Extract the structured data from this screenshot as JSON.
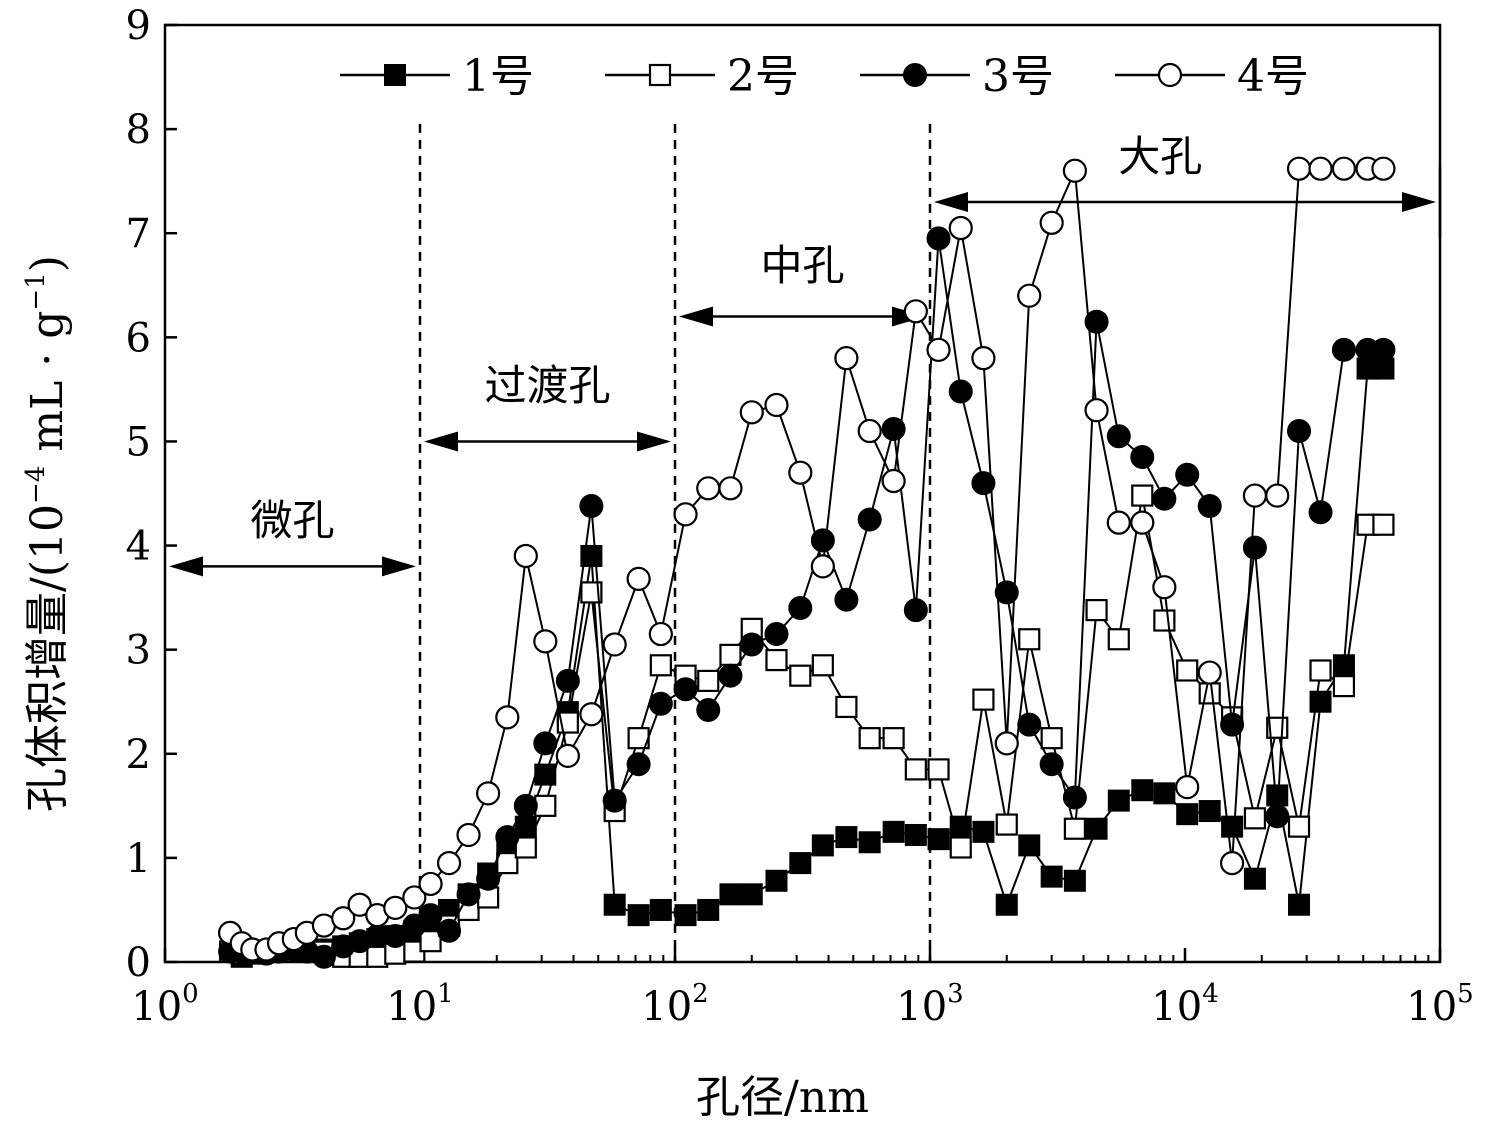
{
  "chart_data": {
    "type": "line",
    "title": "",
    "xlabel": "孔径/nm",
    "ylabel": "孔体积增量/(10⁻⁴ mL · g⁻¹)",
    "ylabel_parts": {
      "prefix": "孔体积增量/(10",
      "exp1": "−4",
      "mid": " mL · g",
      "exp2": "−1",
      "suffix": ")"
    },
    "x_scale": "log",
    "xlim": [
      1,
      100000
    ],
    "ylim": [
      0,
      9
    ],
    "x_ticks": [
      {
        "value": 1,
        "base": "10",
        "exp": "0"
      },
      {
        "value": 10,
        "base": "10",
        "exp": "1"
      },
      {
        "value": 100,
        "base": "10",
        "exp": "2"
      },
      {
        "value": 1000,
        "base": "10",
        "exp": "3"
      },
      {
        "value": 10000,
        "base": "10",
        "exp": "4"
      },
      {
        "value": 100000,
        "base": "10",
        "exp": "5"
      }
    ],
    "y_ticks": [
      "0",
      "1",
      "2",
      "3",
      "4",
      "5",
      "6",
      "7",
      "8",
      "9"
    ],
    "grid": false,
    "legend_position": "top",
    "boundaries": [
      10,
      100,
      1000
    ],
    "regions": [
      {
        "label": "微孔",
        "from": 1,
        "to": 10,
        "arrow_y": 3.8,
        "label_y": 4.1
      },
      {
        "label": "过渡孔",
        "from": 10,
        "to": 100,
        "arrow_y": 5.0,
        "label_y": 5.4
      },
      {
        "label": "中孔",
        "from": 100,
        "to": 1000,
        "arrow_y": 6.2,
        "label_y": 6.55
      },
      {
        "label": "大孔",
        "from": 1000,
        "to": 100000,
        "arrow_y": 7.3,
        "label_y": 7.6
      }
    ],
    "series": [
      {
        "name": "1号",
        "marker": "square-filled",
        "x": [
          1.8,
          2.0,
          2.2,
          2.5,
          2.8,
          3.2,
          3.6,
          4.2,
          5.0,
          5.8,
          6.8,
          8.0,
          9.5,
          11,
          13,
          15.5,
          18.5,
          22,
          26,
          31,
          38,
          47,
          58,
          72,
          88,
          110,
          135,
          165,
          200,
          250,
          310,
          380,
          470,
          580,
          720,
          880,
          1080,
          1320,
          1620,
          2000,
          2450,
          3000,
          3700,
          4500,
          5500,
          6800,
          8300,
          10200,
          12500,
          15300,
          18800,
          23000,
          28000,
          34000,
          42000,
          52000,
          60000
        ],
        "y": [
          0.1,
          0.05,
          0.08,
          0.1,
          0.12,
          0.15,
          0.1,
          0.12,
          0.15,
          0.18,
          0.22,
          0.25,
          0.3,
          0.4,
          0.5,
          0.65,
          0.85,
          1.1,
          1.3,
          1.8,
          2.4,
          3.9,
          0.55,
          0.45,
          0.5,
          0.45,
          0.5,
          0.65,
          0.65,
          0.78,
          0.95,
          1.12,
          1.2,
          1.15,
          1.25,
          1.22,
          1.18,
          1.3,
          1.25,
          0.55,
          1.12,
          0.82,
          0.78,
          1.28,
          1.55,
          1.65,
          1.62,
          1.42,
          1.45,
          1.3,
          0.8,
          1.6,
          0.55,
          2.5,
          2.85,
          5.7,
          5.7
        ]
      },
      {
        "name": "2号",
        "marker": "square-open",
        "x": [
          1.8,
          2.0,
          2.2,
          2.5,
          2.8,
          3.2,
          3.6,
          4.2,
          5.0,
          5.8,
          6.8,
          8.0,
          9.5,
          11,
          13,
          15.5,
          18.5,
          22,
          26,
          31,
          38,
          47,
          58,
          72,
          88,
          110,
          135,
          165,
          200,
          250,
          310,
          380,
          470,
          580,
          720,
          880,
          1080,
          1320,
          1620,
          2000,
          2450,
          3000,
          3700,
          4500,
          5500,
          6800,
          8300,
          10200,
          12500,
          15300,
          18800,
          23000,
          28000,
          34000,
          42000,
          52000,
          60000
        ],
        "y": [
          0.1,
          0.08,
          0.1,
          0.1,
          0.12,
          0.12,
          0.1,
          0.1,
          0.05,
          0.05,
          0.05,
          0.08,
          0.1,
          0.2,
          0.35,
          0.5,
          0.62,
          0.95,
          1.1,
          1.5,
          2.3,
          3.55,
          1.45,
          2.15,
          2.85,
          2.75,
          2.7,
          2.95,
          3.2,
          2.9,
          2.75,
          2.85,
          2.45,
          2.15,
          2.15,
          1.85,
          1.85,
          1.1,
          2.52,
          1.32,
          3.1,
          2.15,
          1.28,
          3.38,
          3.1,
          4.48,
          3.28,
          2.8,
          2.58,
          2.35,
          1.38,
          2.25,
          1.3,
          2.8,
          2.65,
          4.2,
          4.2
        ]
      },
      {
        "name": "3号",
        "marker": "circle-filled",
        "x": [
          1.8,
          2.0,
          2.2,
          2.5,
          2.8,
          3.2,
          3.6,
          4.2,
          5.0,
          5.8,
          6.8,
          8.0,
          9.5,
          11,
          13,
          15.5,
          18.5,
          22,
          26,
          31,
          38,
          47,
          58,
          72,
          88,
          110,
          135,
          165,
          200,
          250,
          310,
          380,
          470,
          580,
          720,
          880,
          1080,
          1320,
          1620,
          2000,
          2450,
          3000,
          3700,
          4500,
          5500,
          6800,
          8300,
          10200,
          12500,
          15300,
          18800,
          23000,
          28000,
          34000,
          42000,
          52000,
          60000
        ],
        "y": [
          0.1,
          0.1,
          0.1,
          0.08,
          0.1,
          0.12,
          0.1,
          0.05,
          0.15,
          0.2,
          0.25,
          0.25,
          0.35,
          0.45,
          0.3,
          0.65,
          0.8,
          1.2,
          1.5,
          2.1,
          2.7,
          4.38,
          1.55,
          1.9,
          2.48,
          2.62,
          2.42,
          2.75,
          3.05,
          3.15,
          3.4,
          4.05,
          3.48,
          4.25,
          5.12,
          3.38,
          6.95,
          5.48,
          4.6,
          3.55,
          2.28,
          1.9,
          1.58,
          6.15,
          5.05,
          4.85,
          4.45,
          4.68,
          4.38,
          2.28,
          3.98,
          1.4,
          5.1,
          4.32,
          5.88,
          5.88,
          5.88
        ]
      },
      {
        "name": "4号",
        "marker": "circle-open",
        "x": [
          1.8,
          2.0,
          2.2,
          2.5,
          2.8,
          3.2,
          3.6,
          4.2,
          5.0,
          5.8,
          6.8,
          8.0,
          9.5,
          11,
          13,
          15.5,
          18.5,
          22,
          26,
          31,
          38,
          47,
          58,
          72,
          88,
          110,
          135,
          165,
          200,
          250,
          310,
          380,
          470,
          580,
          720,
          880,
          1080,
          1320,
          1620,
          2000,
          2450,
          3000,
          3700,
          4500,
          5500,
          6800,
          8300,
          10200,
          12500,
          15300,
          18800,
          23000,
          28000,
          34000,
          42000,
          52000,
          60000
        ],
        "y": [
          0.28,
          0.18,
          0.12,
          0.12,
          0.18,
          0.22,
          0.28,
          0.35,
          0.42,
          0.55,
          0.45,
          0.52,
          0.62,
          0.75,
          0.95,
          1.22,
          1.62,
          2.35,
          3.9,
          3.08,
          1.98,
          2.38,
          3.05,
          3.68,
          3.15,
          4.3,
          4.55,
          4.55,
          5.28,
          5.35,
          4.7,
          3.8,
          5.8,
          5.1,
          4.62,
          6.25,
          5.88,
          7.05,
          5.8,
          2.1,
          6.4,
          7.1,
          7.6,
          5.3,
          4.22,
          4.22,
          3.6,
          1.68,
          2.78,
          0.95,
          4.48,
          4.48,
          7.62,
          7.62,
          7.62,
          7.62,
          7.62
        ]
      }
    ]
  }
}
